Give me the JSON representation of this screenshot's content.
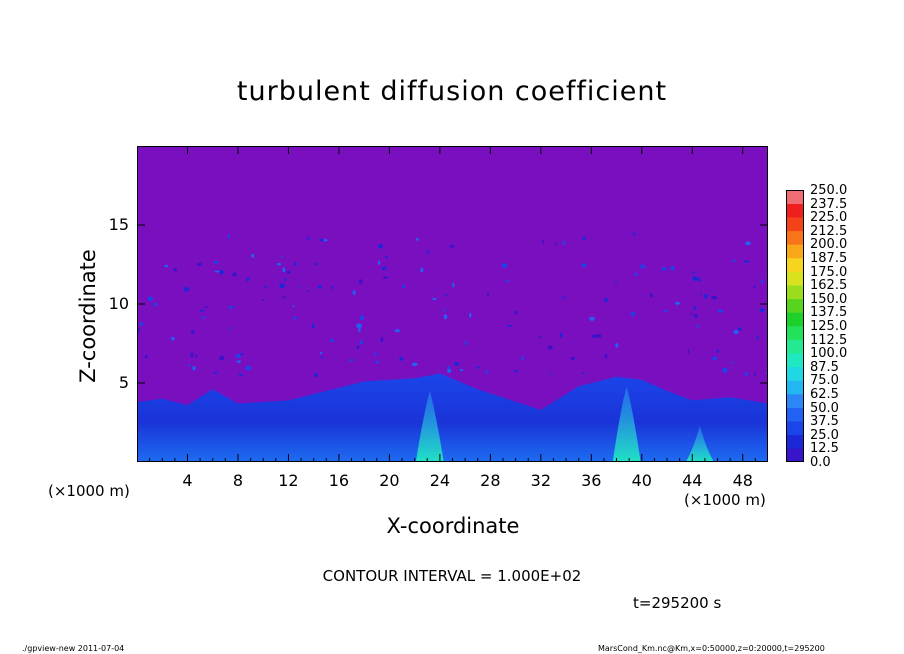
{
  "figure": {
    "title": "turbulent diffusion coefficient",
    "xlabel": "X-coordinate",
    "ylabel": "Z-coordinate",
    "x_unit_left": "(×1000 m)",
    "x_unit_right": "(×1000 m)",
    "contour_interval": "CONTOUR INTERVAL = 1.000E+02",
    "time": "t=295200 s",
    "footer_left": "./gpview-new   2011-07-04",
    "footer_right": "MarsCond_Km.nc@Km,x=0:50000,z=0:20000,t=295200"
  },
  "chart_data": {
    "type": "heatmap",
    "title": "turbulent diffusion coefficient",
    "xlabel": "X-coordinate",
    "ylabel": "Z-coordinate",
    "xlim": [
      0,
      50
    ],
    "ylim": [
      0,
      20
    ],
    "x_ticks": [
      4,
      8,
      12,
      16,
      20,
      24,
      28,
      32,
      36,
      40,
      44,
      48
    ],
    "y_ticks": [
      5,
      10,
      15
    ],
    "colorbar": {
      "levels": [
        "0.0",
        "12.5",
        "25.0",
        "37.5",
        "50.0",
        "62.5",
        "75.0",
        "87.5",
        "100.0",
        "112.5",
        "125.0",
        "137.5",
        "150.0",
        "162.5",
        "175.0",
        "187.5",
        "200.0",
        "212.5",
        "225.0",
        "237.5",
        "250.0"
      ],
      "colors": [
        "#7a0fbf",
        "#3a14c8",
        "#1a28d8",
        "#1b45ea",
        "#2162f2",
        "#2b86f6",
        "#23b7f2",
        "#1fd8e4",
        "#20e8c0",
        "#23e990",
        "#21e25a",
        "#1ed12a",
        "#58d41e",
        "#9bdc1f",
        "#d8e21f",
        "#f7d51e",
        "#f8a71b",
        "#f77519",
        "#f44318",
        "#ee1f1f",
        "#ef6d74"
      ]
    },
    "background_value": "0.0",
    "boundary_layer_top_km": [
      3.8,
      4.0,
      3.6,
      4.6,
      3.7,
      3.9,
      5.1,
      5.3,
      5.6,
      4.6,
      3.3,
      4.8,
      5.4,
      5.2,
      4.5,
      3.9,
      4.1,
      3.7
    ],
    "boundary_layer_x_km": [
      0,
      2,
      4,
      6,
      8,
      12,
      18,
      22,
      24,
      27,
      32,
      35,
      38,
      40,
      42,
      44,
      47,
      50
    ]
  }
}
